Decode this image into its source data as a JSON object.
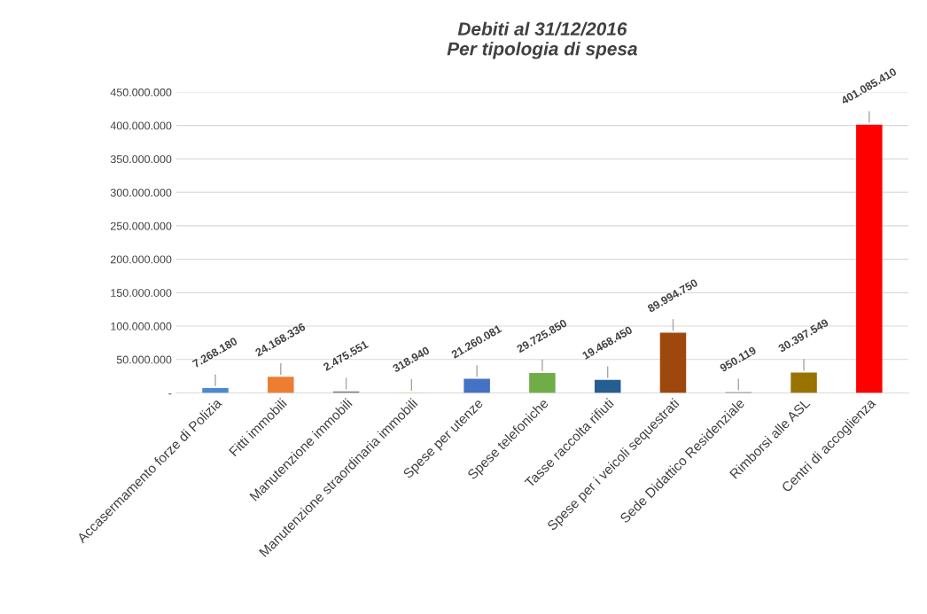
{
  "chart_data": {
    "type": "bar",
    "title": "Debiti al 31/12/2016\nPer tipologia di spesa",
    "categories": [
      "Accasermamento forze di Polizia",
      "Fitti immobili",
      "Manutenzione immobili",
      "Manutenzione straordinaria immobili",
      "Spese per utenze",
      "Spese telefoniche",
      "Tasse raccolta rifiuti",
      "Spese per i veicoli sequestrati",
      "Sede Didattico Residenziale",
      "Rimborsi alle ASL",
      "Centri di accoglienza"
    ],
    "values": [
      7268180,
      24168336,
      2475551,
      318940,
      21260081,
      29725850,
      19468450,
      89994750,
      950119,
      30397549,
      401085410
    ],
    "value_labels": [
      "7.268.180",
      "24.168.336",
      "2.475.551",
      "318.940",
      "21.260.081",
      "29.725.850",
      "19.468.450",
      "89.994.750",
      "950.119",
      "30.397.549",
      "401.085.410"
    ],
    "colors": [
      "#4a8ad0",
      "#ed7d31",
      "#7f7f7f",
      "#c9a200",
      "#4472c4",
      "#70ad47",
      "#255e91",
      "#9e480e",
      "#404040",
      "#997300",
      "#ff0000"
    ],
    "ylim": [
      0,
      450000000
    ],
    "yticks": [
      {
        "value": 0,
        "label": "-"
      },
      {
        "value": 50000000,
        "label": "50.000.000"
      },
      {
        "value": 100000000,
        "label": "100.000.000"
      },
      {
        "value": 150000000,
        "label": "150.000.000"
      },
      {
        "value": 200000000,
        "label": "200.000.000"
      },
      {
        "value": 250000000,
        "label": "250.000.000"
      },
      {
        "value": 300000000,
        "label": "300.000.000"
      },
      {
        "value": 350000000,
        "label": "350.000.000"
      },
      {
        "value": 400000000,
        "label": "400.000.000"
      },
      {
        "value": 450000000,
        "label": "450.000.000"
      }
    ],
    "grid": "y"
  }
}
